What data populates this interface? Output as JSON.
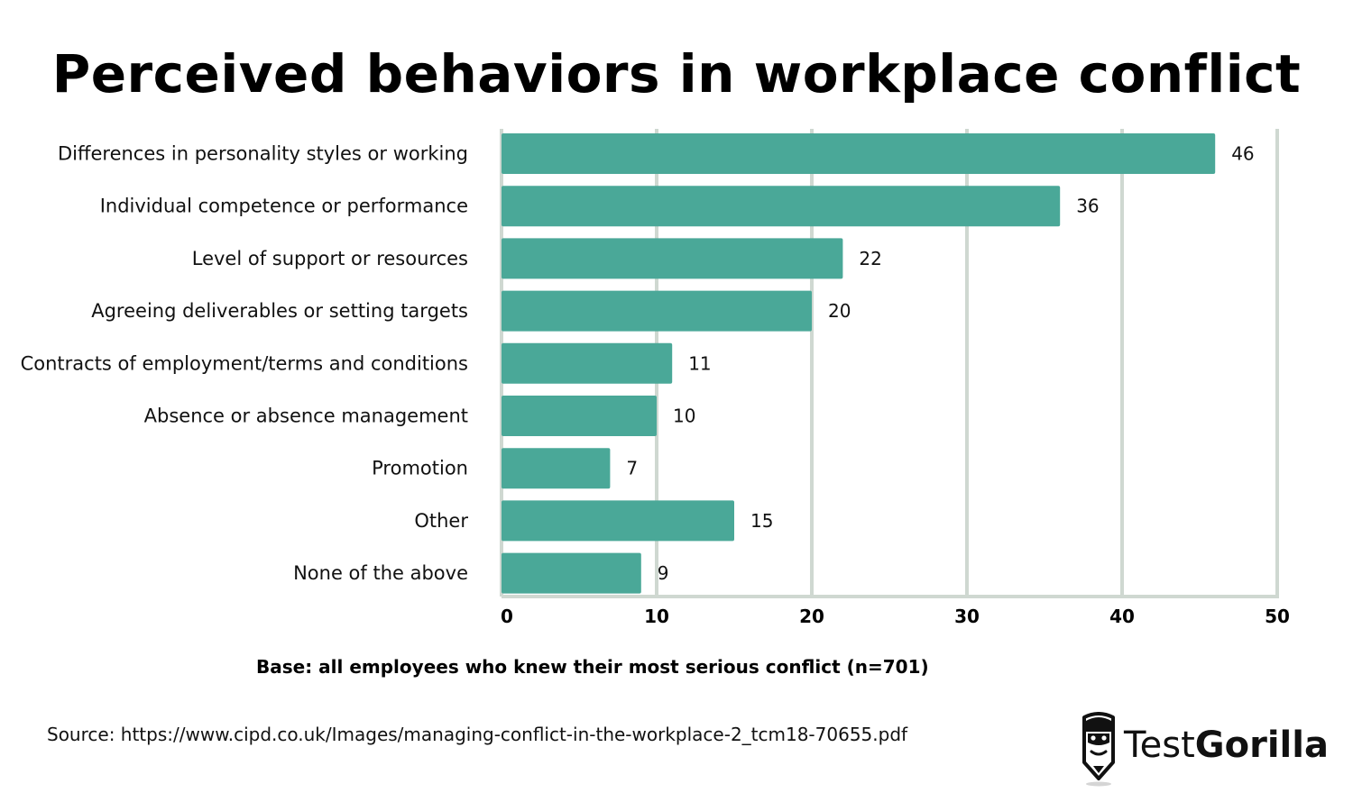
{
  "chart_data": {
    "type": "bar",
    "orientation": "horizontal",
    "title": "Perceived behaviors in workplace conflict",
    "categories": [
      "Differences in personality styles or working",
      "Individual competence or performance",
      "Level of support or resources",
      "Agreeing deliverables or setting targets",
      "Contracts of employment/terms and conditions",
      "Absence or absence management",
      "Promotion",
      "Other",
      "None of the above"
    ],
    "values": [
      46,
      36,
      22,
      20,
      11,
      10,
      7,
      15,
      9
    ],
    "value_labels": [
      "46",
      "36",
      "22",
      "20",
      "11",
      "10",
      "7",
      "15",
      "9"
    ],
    "xlim": [
      0,
      50
    ],
    "xticks": [
      0,
      10,
      20,
      30,
      40,
      50
    ],
    "xtick_labels": [
      "0",
      "10",
      "20",
      "30",
      "40",
      "50"
    ],
    "grid": true,
    "bar_color": "#4aa898",
    "grid_color": "#cfd8d1"
  },
  "notes": {
    "base": "Base: all employees who knew their most serious conflict (n=701)",
    "source": "Source: https://www.cipd.co.uk/Images/managing-conflict-in-the-workplace-2_tcm18-70655.pdf"
  },
  "logo": {
    "icon": "gorilla-icon",
    "text_regular": "Test",
    "text_bold": "Gorilla"
  }
}
